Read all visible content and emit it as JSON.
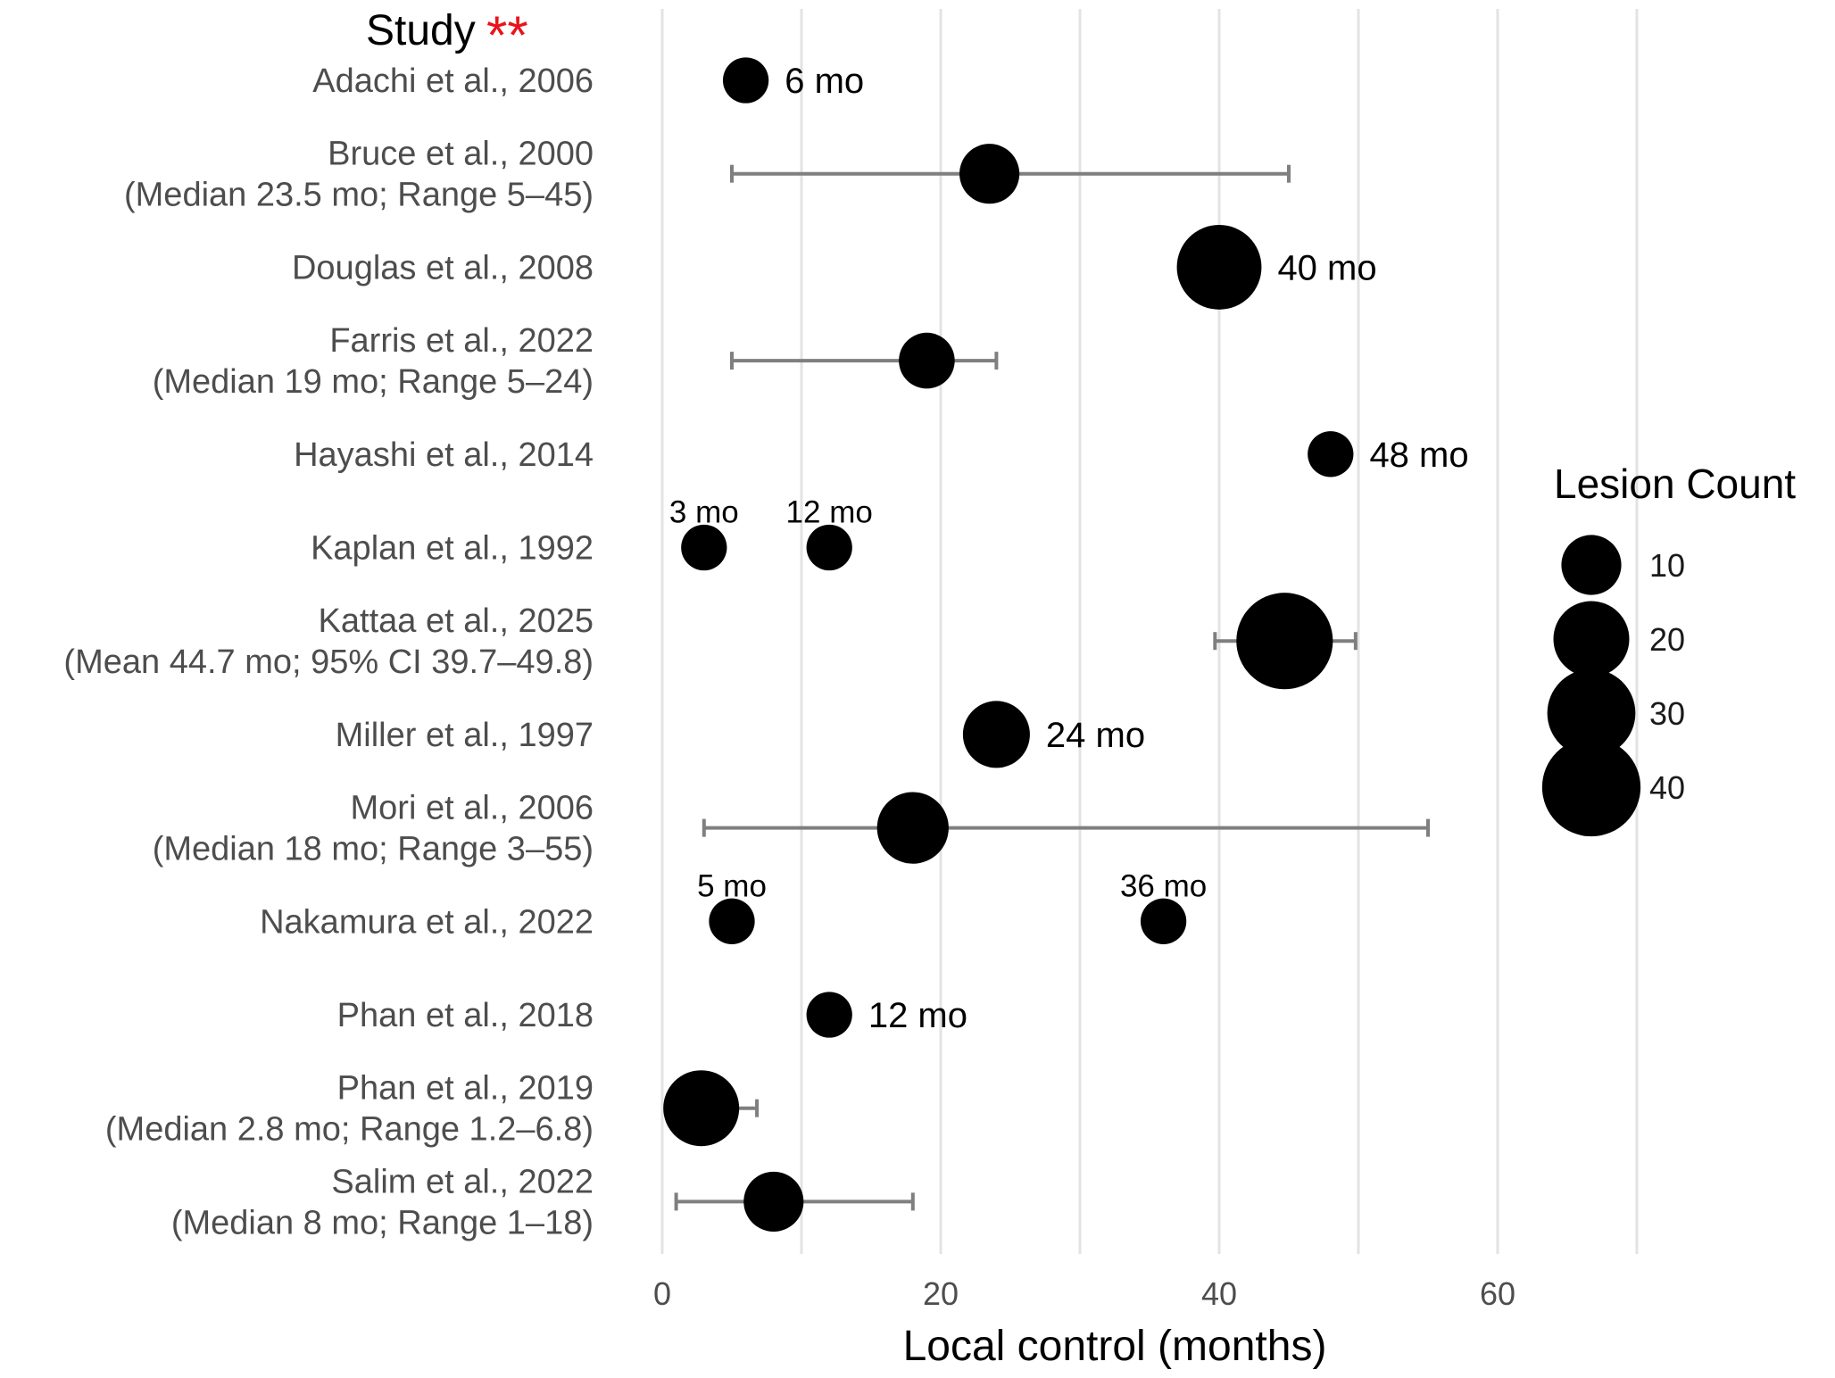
{
  "chart_data": {
    "type": "scatter",
    "title": "",
    "header_label": "Study",
    "header_mark": "**",
    "xlabel": "Local control (months)",
    "xlim": [
      0,
      60
    ],
    "xticks": [
      "0",
      "20",
      "40",
      "60"
    ],
    "grid": true,
    "size_legend": {
      "title": "Lesion Count",
      "values": [
        10,
        20,
        30,
        40
      ],
      "labels": [
        "10",
        "20",
        "30",
        "40"
      ],
      "placement": "right"
    },
    "studies": [
      {
        "label": [
          "Adachi et al., 2006"
        ],
        "points": [
          {
            "x": 6,
            "lesions": 4,
            "label": "6 mo",
            "label_pos": "right"
          }
        ]
      },
      {
        "label": [
          "Bruce et al., 2000",
          "(Median 23.5 mo; Range 5–45)"
        ],
        "points": [
          {
            "x": 23.5,
            "lesions": 10
          }
        ],
        "range": [
          5,
          45
        ]
      },
      {
        "label": [
          "Douglas et al., 2008"
        ],
        "points": [
          {
            "x": 40,
            "lesions": 27,
            "label": "40 mo",
            "label_pos": "right"
          }
        ]
      },
      {
        "label": [
          "Farris et al., 2022",
          "(Median 19 mo; Range 5–24)"
        ],
        "points": [
          {
            "x": 19,
            "lesions": 8
          }
        ],
        "range": [
          5,
          24
        ]
      },
      {
        "label": [
          "Hayashi et al., 2014"
        ],
        "points": [
          {
            "x": 48,
            "lesions": 4,
            "label": "48 mo",
            "label_pos": "right"
          }
        ]
      },
      {
        "label": [
          "Kaplan et al., 1992"
        ],
        "points": [
          {
            "x": 3,
            "lesions": 4,
            "label": "3 mo",
            "label_pos": "above"
          },
          {
            "x": 12,
            "lesions": 4,
            "label": "12 mo",
            "label_pos": "above"
          }
        ]
      },
      {
        "label": [
          "Kattaa et al., 2025",
          "(Mean 44.7 mo; 95% CI 39.7–49.8)"
        ],
        "points": [
          {
            "x": 44.7,
            "lesions": 38
          }
        ],
        "range": [
          39.7,
          49.8
        ]
      },
      {
        "label": [
          "Miller et al., 1997"
        ],
        "points": [
          {
            "x": 24,
            "lesions": 14,
            "label": "24 mo",
            "label_pos": "right"
          }
        ]
      },
      {
        "label": [
          "Mori et al., 2006",
          "(Median 18 mo; Range 3–55)"
        ],
        "points": [
          {
            "x": 18,
            "lesions": 17
          }
        ],
        "range": [
          3,
          55
        ]
      },
      {
        "label": [
          "Nakamura et al., 2022"
        ],
        "points": [
          {
            "x": 5,
            "lesions": 4,
            "label": "5 mo",
            "label_pos": "above"
          },
          {
            "x": 36,
            "lesions": 4,
            "label": "36 mo",
            "label_pos": "above"
          }
        ]
      },
      {
        "label": [
          "Phan et al., 2018"
        ],
        "points": [
          {
            "x": 12,
            "lesions": 4,
            "label": "12 mo",
            "label_pos": "right"
          }
        ]
      },
      {
        "label": [
          "Phan et al., 2019",
          "(Median 2.8 mo; Range 1.2–6.8)"
        ],
        "points": [
          {
            "x": 2.8,
            "lesions": 20
          }
        ],
        "range": [
          1.2,
          6.8
        ]
      },
      {
        "label": [
          "Salim et al., 2022",
          "(Median 8 mo; Range 1–18)"
        ],
        "points": [
          {
            "x": 8,
            "lesions": 10
          }
        ],
        "range": [
          1,
          18
        ]
      }
    ]
  }
}
